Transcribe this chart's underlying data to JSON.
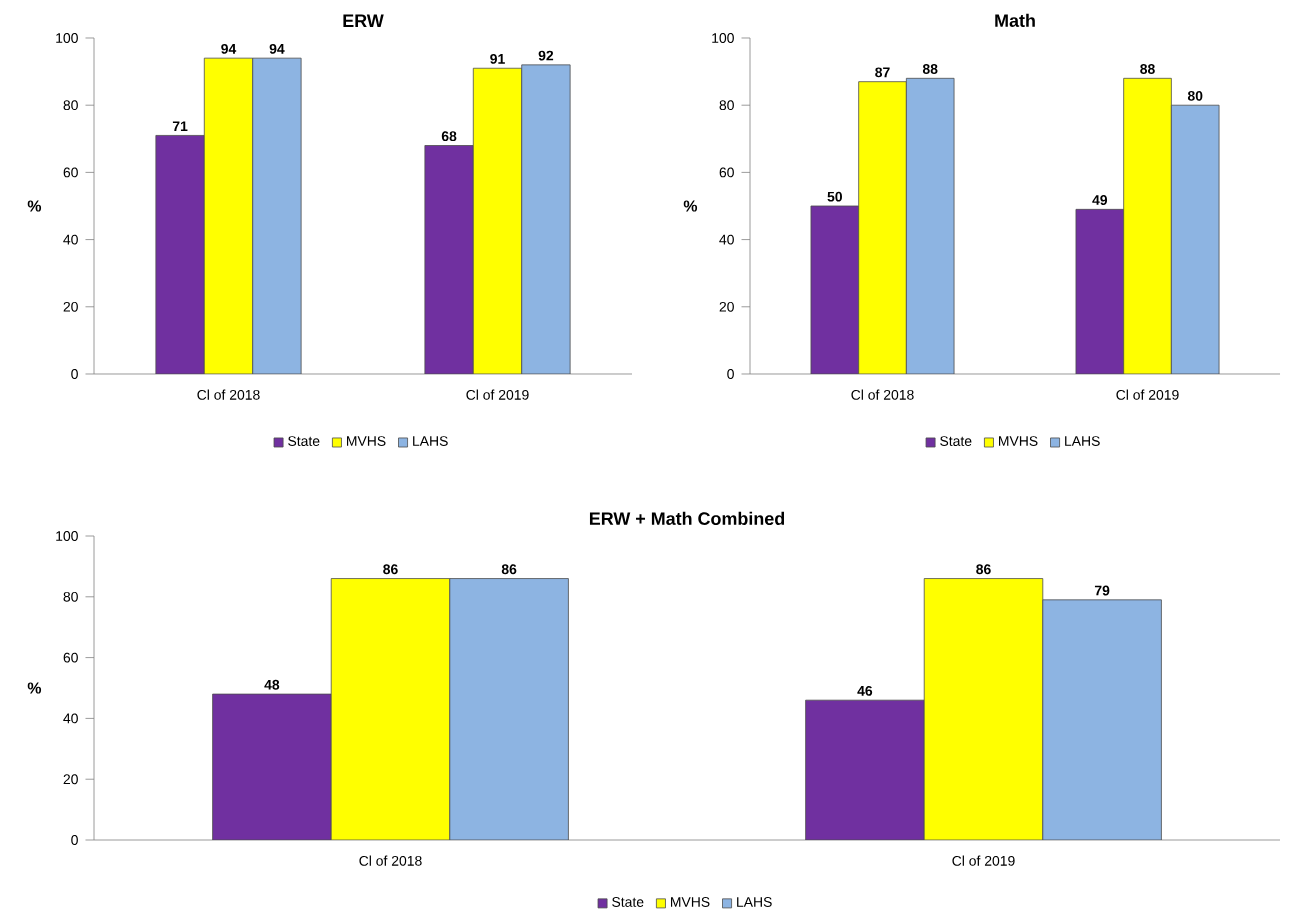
{
  "chart_data": [
    {
      "type": "bar",
      "title": "ERW",
      "ylabel": "%",
      "categories": [
        "Cl of 2018",
        "Cl of 2019"
      ],
      "ylim": [
        0,
        100
      ],
      "yticks": [
        0,
        20,
        40,
        60,
        80,
        100
      ],
      "legend": "bottom",
      "data_labels": true,
      "series": [
        {
          "name": "State",
          "color": "#7030a0",
          "values": [
            71,
            68
          ]
        },
        {
          "name": "MVHS",
          "color": "#ffff00",
          "values": [
            94,
            91
          ]
        },
        {
          "name": "LAHS",
          "color": "#8db4e2",
          "values": [
            94,
            92
          ]
        }
      ]
    },
    {
      "type": "bar",
      "title": "Math",
      "ylabel": "%",
      "categories": [
        "Cl of 2018",
        "Cl of 2019"
      ],
      "ylim": [
        0,
        100
      ],
      "yticks": [
        0,
        20,
        40,
        60,
        80,
        100
      ],
      "legend": "bottom",
      "data_labels": true,
      "series": [
        {
          "name": "State",
          "color": "#7030a0",
          "values": [
            50,
            49
          ]
        },
        {
          "name": "MVHS",
          "color": "#ffff00",
          "values": [
            87,
            88
          ]
        },
        {
          "name": "LAHS",
          "color": "#8db4e2",
          "values": [
            88,
            80
          ]
        }
      ]
    },
    {
      "type": "bar",
      "title": "ERW + Math Combined",
      "ylabel": "%",
      "categories": [
        "Cl of 2018",
        "Cl of 2019"
      ],
      "ylim": [
        0,
        100
      ],
      "yticks": [
        0,
        20,
        40,
        60,
        80,
        100
      ],
      "legend": "bottom",
      "data_labels": true,
      "series": [
        {
          "name": "State",
          "color": "#7030a0",
          "values": [
            48,
            46
          ]
        },
        {
          "name": "MVHS",
          "color": "#ffff00",
          "values": [
            86,
            86
          ]
        },
        {
          "name": "LAHS",
          "color": "#8db4e2",
          "values": [
            86,
            79
          ]
        }
      ]
    }
  ]
}
